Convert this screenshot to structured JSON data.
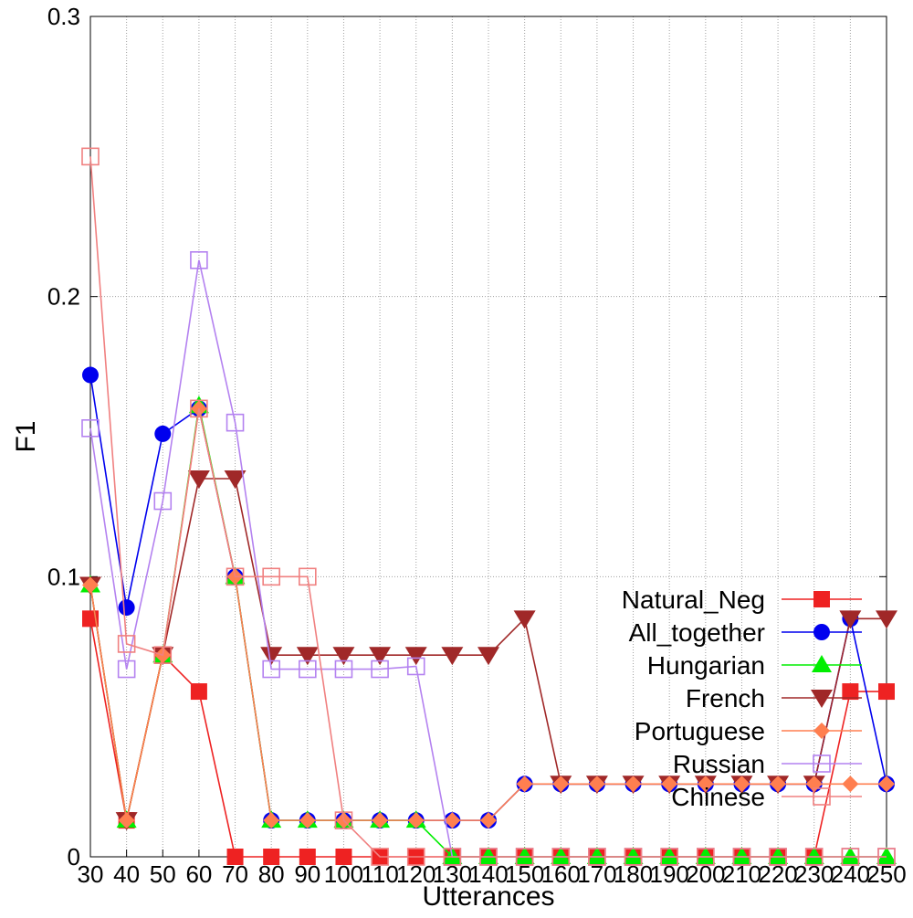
{
  "chart_data": {
    "type": "line",
    "xlabel": "Utterances",
    "ylabel": "F1",
    "x": [
      30,
      40,
      50,
      60,
      70,
      80,
      90,
      100,
      110,
      120,
      130,
      140,
      150,
      160,
      170,
      180,
      190,
      200,
      210,
      220,
      230,
      240,
      250
    ],
    "xlim": [
      30,
      250
    ],
    "ylim": [
      0,
      0.3
    ],
    "y_ticks": [
      "0",
      "0.1",
      "0.2",
      "0.3"
    ],
    "grid": "dotted, vertical at every x tick and horizontal at 0.1, 0.2",
    "legend_position": "lower-right",
    "series": [
      {
        "name": "Natural_Neg",
        "color": "#ee2222",
        "marker": "filled-square",
        "values": [
          0.085,
          0.013,
          0.072,
          0.059,
          0.0,
          0.0,
          0.0,
          0.0,
          0.0,
          0.0,
          0.0,
          0.0,
          0.0,
          0.0,
          0.0,
          0.0,
          0.0,
          0.0,
          0.0,
          0.0,
          0.0,
          0.059,
          0.059
        ]
      },
      {
        "name": "All_together",
        "color": "#0000ee",
        "marker": "filled-circle",
        "values": [
          0.172,
          0.089,
          0.151,
          0.16,
          0.1,
          0.013,
          0.013,
          0.013,
          0.013,
          0.013,
          0.013,
          0.013,
          0.026,
          0.026,
          0.026,
          0.026,
          0.026,
          0.026,
          0.026,
          0.026,
          0.026,
          0.085,
          0.026
        ]
      },
      {
        "name": "Hungarian",
        "color": "#00ee00",
        "marker": "filled-triangle-up",
        "values": [
          0.097,
          0.013,
          0.072,
          0.161,
          0.1,
          0.013,
          0.013,
          0.013,
          0.013,
          0.013,
          0.0,
          0.0,
          0.0,
          0.0,
          0.0,
          0.0,
          0.0,
          0.0,
          0.0,
          0.0,
          0.0,
          0.0,
          0.0
        ]
      },
      {
        "name": "French",
        "color": "#a02828",
        "marker": "filled-triangle-down",
        "values": [
          0.097,
          0.013,
          0.072,
          0.135,
          0.135,
          0.072,
          0.072,
          0.072,
          0.072,
          0.072,
          0.072,
          0.072,
          0.085,
          0.026,
          0.026,
          0.026,
          0.026,
          0.026,
          0.026,
          0.026,
          0.026,
          0.085,
          0.085
        ]
      },
      {
        "name": "Portuguese",
        "color": "#ff7f50",
        "marker": "filled-diamond",
        "values": [
          0.097,
          0.013,
          0.072,
          0.16,
          0.1,
          0.013,
          0.013,
          0.013,
          0.013,
          0.013,
          0.013,
          0.013,
          0.026,
          0.026,
          0.026,
          0.026,
          0.026,
          0.026,
          0.026,
          0.026,
          0.026,
          0.026,
          0.026
        ]
      },
      {
        "name": "Russian",
        "color": "#b482f0",
        "marker": "open-square",
        "values": [
          0.153,
          0.067,
          0.127,
          0.213,
          0.155,
          0.067,
          0.067,
          0.067,
          0.067,
          0.068,
          0.0,
          0.0,
          0.0,
          0.0,
          0.0,
          0.0,
          0.0,
          0.0,
          0.0,
          0.0,
          0.0,
          0.0,
          0.0
        ]
      },
      {
        "name": "Chinese",
        "color": "#f08080",
        "marker": "open-square",
        "values": [
          0.25,
          0.076,
          0.072,
          0.16,
          0.1,
          0.1,
          0.1,
          0.013,
          0.0,
          0.0,
          0.0,
          0.0,
          0.0,
          0.0,
          0.0,
          0.0,
          0.0,
          0.0,
          0.0,
          0.0,
          0.0,
          0.0,
          0.0
        ]
      }
    ]
  }
}
